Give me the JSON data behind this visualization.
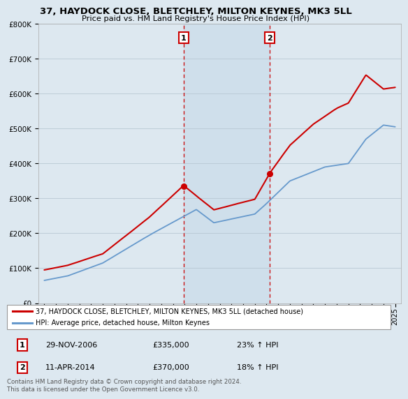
{
  "title_line1": "37, HAYDOCK CLOSE, BLETCHLEY, MILTON KEYNES, MK3 5LL",
  "title_line2": "Price paid vs. HM Land Registry's House Price Index (HPI)",
  "legend_label1": "37, HAYDOCK CLOSE, BLETCHLEY, MILTON KEYNES, MK3 5LL (detached house)",
  "legend_label2": "HPI: Average price, detached house, Milton Keynes",
  "ylabel_ticks": [
    "£0",
    "£100K",
    "£200K",
    "£300K",
    "£400K",
    "£500K",
    "£600K",
    "£700K",
    "£800K"
  ],
  "ytick_vals": [
    0,
    100000,
    200000,
    300000,
    400000,
    500000,
    600000,
    700000,
    800000
  ],
  "line1_color": "#cc0000",
  "line2_color": "#6699cc",
  "background_color": "#dde8f0",
  "annotation1_label": "1",
  "annotation2_label": "2",
  "sale1_year": 2006.91,
  "sale1_val": 335000,
  "sale2_year": 2014.28,
  "sale2_val": 370000,
  "footer": "Contains HM Land Registry data © Crown copyright and database right 2024.\nThis data is licensed under the Open Government Licence v3.0.",
  "table_row1": [
    "1",
    "29-NOV-2006",
    "£335,000",
    "23% ↑ HPI"
  ],
  "table_row2": [
    "2",
    "11-APR-2014",
    "£370,000",
    "18% ↑ HPI"
  ],
  "hpi_points_x": [
    1995,
    1997,
    2000,
    2004,
    2007,
    2008,
    2009.5,
    2013,
    2014,
    2016,
    2019,
    2021,
    2022.5,
    2024,
    2025
  ],
  "hpi_points_y": [
    65000,
    78000,
    115000,
    195000,
    250000,
    268000,
    230000,
    255000,
    285000,
    350000,
    390000,
    400000,
    470000,
    510000,
    505000
  ],
  "red_points_x": [
    1995,
    1997,
    2000,
    2004,
    2006.91,
    2008,
    2009.5,
    2011,
    2013,
    2014.28,
    2016,
    2018,
    2020,
    2021,
    2022.5,
    2024,
    2025
  ],
  "red_points_y": [
    95000,
    108000,
    140000,
    245000,
    335000,
    305000,
    265000,
    278000,
    295000,
    370000,
    450000,
    510000,
    555000,
    570000,
    650000,
    610000,
    615000
  ],
  "xstart": 1994.5,
  "xend": 2025.5,
  "ylim": [
    0,
    800000
  ],
  "noise_seed": 42,
  "hpi_noise_scale": 0.0,
  "red_noise_scale": 0.0
}
